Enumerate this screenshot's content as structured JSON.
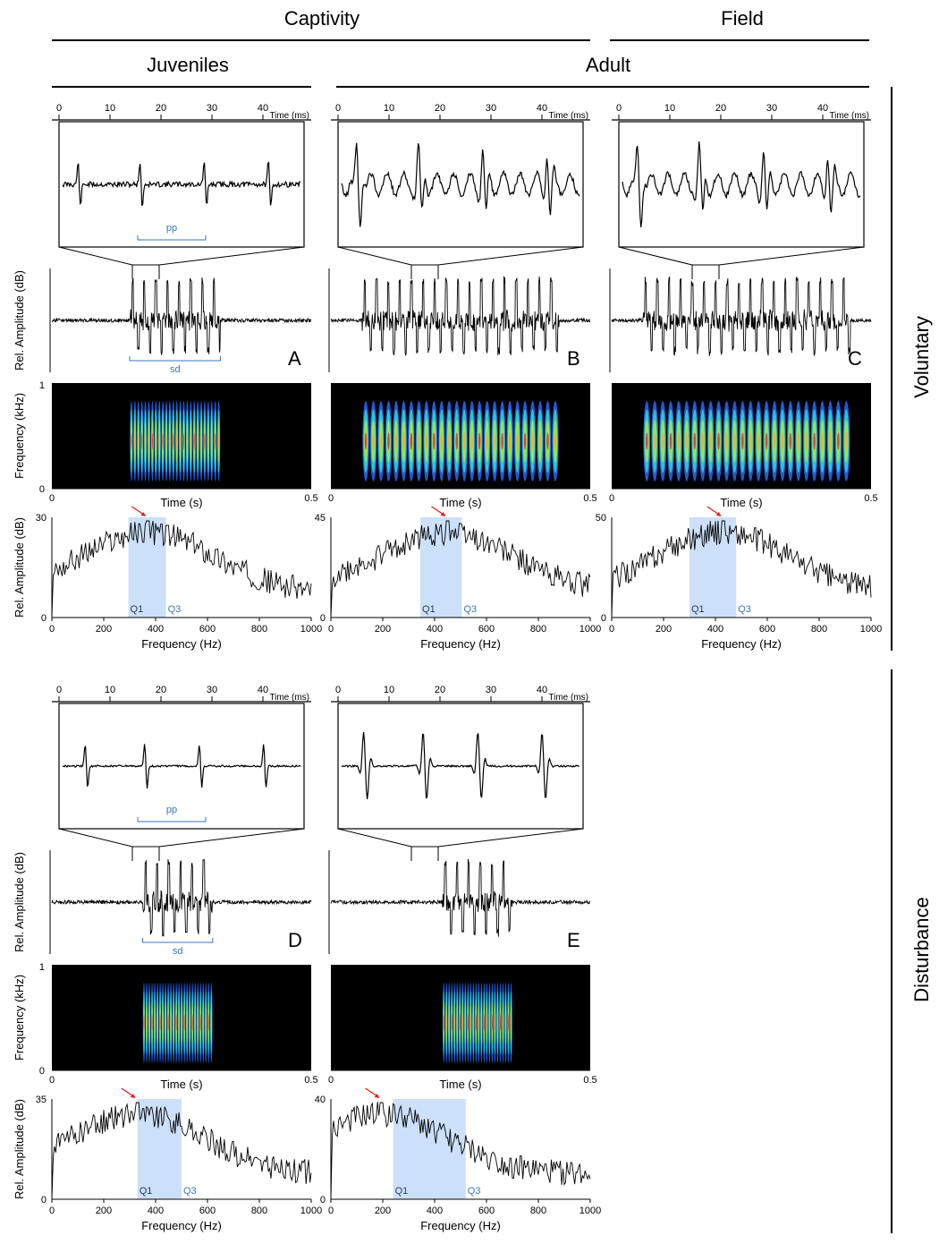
{
  "headers": {
    "captivity": "Captivity",
    "field": "Field",
    "juveniles": "Juveniles",
    "adult": "Adult",
    "voluntary": "Voluntary",
    "disturbance": "Disturbance"
  },
  "axis_labels": {
    "time_ms": "Time (ms)",
    "rel_amp": "Rel. Amplitude (dB)",
    "freq_khz": "Frequency (kHz)",
    "time_s": "Time (s)",
    "freq_hz": "Frequency (Hz)",
    "pp": "pp",
    "sd": "sd",
    "q1": "Q1",
    "q3": "Q3"
  },
  "ticks": {
    "ms": [
      "0",
      "10",
      "20",
      "30",
      "40"
    ],
    "khz": [
      "1",
      "0"
    ],
    "time_s": [
      "0",
      "0.5"
    ],
    "hz": [
      "0",
      "200",
      "400",
      "600",
      "800",
      "1000"
    ]
  },
  "colors": {
    "q_band": "#cce0fa",
    "q_text": "#3a78b8",
    "peak_arrow": "#e0201c",
    "spectrogram_bg": "#000000"
  },
  "panels": [
    {
      "letter": "A",
      "group": "voluntary",
      "ymax": "30",
      "peak_x": 370,
      "q1": 295,
      "q3": 440,
      "pp": true,
      "sd": true
    },
    {
      "letter": "B",
      "group": "voluntary",
      "ymax": "45",
      "peak_x": 450,
      "q1": 345,
      "q3": 505,
      "pp": false,
      "sd": false
    },
    {
      "letter": "C",
      "group": "voluntary",
      "ymax": "50",
      "peak_x": 430,
      "q1": 300,
      "q3": 480,
      "pp": false,
      "sd": false
    },
    {
      "letter": "D",
      "group": "disturbance",
      "ymax": "35",
      "peak_x": 330,
      "q1": 330,
      "q3": 500,
      "pp": true,
      "sd": true
    },
    {
      "letter": "E",
      "group": "disturbance",
      "ymax": "40",
      "peak_x": 195,
      "q1": 240,
      "q3": 520,
      "pp": false,
      "sd": false
    }
  ]
}
